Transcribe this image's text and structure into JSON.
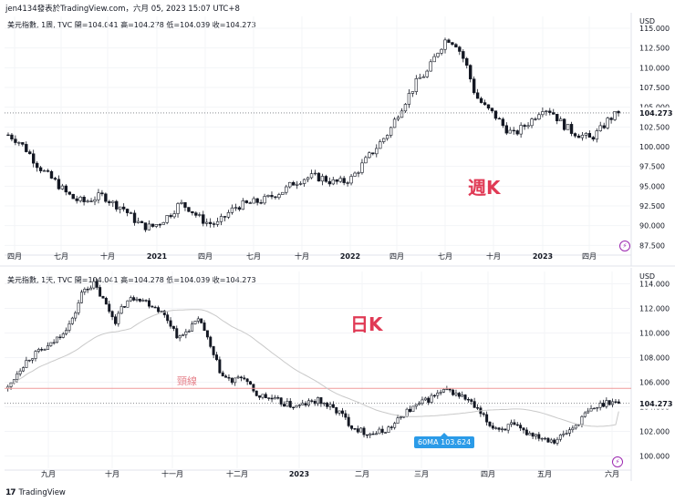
{
  "header": {
    "text": "jen4134發表於TradingView.com，六月 05, 2023 15:07 UTC+8"
  },
  "footer": {
    "logo": "17",
    "brand": "TradingView"
  },
  "weekly": {
    "title_symbol": "美元指數, 1周, TVC",
    "title_values": "開=104.041 高=104.278 低=104.039 收=104.273",
    "label": "週K",
    "last_price": "104.273",
    "currency": "USD"
  },
  "daily": {
    "title_symbol": "美元指數, 1天, TVC",
    "title_values": "開=104.041 高=104.278 低=104.039 收=104.273",
    "label": "日K",
    "neckline_label": "頸線",
    "ma_label": "60MA 103.624",
    "last_price": "104.273",
    "currency": "USD"
  },
  "chart_data": [
    {
      "type": "candlestick",
      "title": "美元指數, 1周, TVC",
      "ylim": [
        86.5,
        116.5
      ],
      "y_ticks": [
        "87.500",
        "90.000",
        "92.500",
        "95.000",
        "97.500",
        "100.000",
        "102.500",
        "105.000",
        "107.500",
        "110.000",
        "112.500",
        "115.000"
      ],
      "x_tick_labels": [
        "四月",
        "七月",
        "十月",
        "2021",
        "四月",
        "七月",
        "十月",
        "2022",
        "四月",
        "七月",
        "十月",
        "2023",
        "四月"
      ],
      "close_path": [
        101.5,
        100.8,
        99.5,
        97.8,
        96.5,
        95.5,
        94.2,
        93.3,
        93.0,
        93.5,
        93.8,
        92.8,
        92.3,
        91.0,
        90.0,
        89.8,
        90.5,
        91.5,
        92.8,
        92.2,
        91.0,
        90.3,
        90.2,
        91.5,
        92.5,
        92.7,
        93.0,
        93.3,
        94.0,
        94.5,
        95.5,
        96.0,
        96.2,
        96.0,
        95.5,
        95.5,
        96.0,
        97.5,
        99.0,
        100.5,
        102.0,
        104.5,
        106.5,
        108.5,
        109.5,
        112.0,
        113.8,
        113.0,
        110.5,
        106.5,
        105.0,
        104.0,
        102.5,
        101.5,
        102.5,
        103.5,
        105.0,
        104.5,
        103.0,
        102.0,
        101.5,
        101.0,
        102.0,
        103.5,
        104.273
      ],
      "last": 104.273
    },
    {
      "type": "candlestick",
      "title": "美元指數, 1天, TVC",
      "ylim": [
        99.0,
        115.0
      ],
      "y_ticks": [
        "100.000",
        "102.000",
        "104.000",
        "106.000",
        "108.000",
        "110.000",
        "112.000",
        "114.000"
      ],
      "x_tick_labels": [
        "九月",
        "十月",
        "十一月",
        "十二月",
        "2023",
        "二月",
        "三月",
        "四月",
        "五月",
        "六月"
      ],
      "close_path": [
        105.5,
        107.0,
        108.0,
        108.5,
        109.0,
        110.0,
        111.0,
        113.5,
        114.0,
        112.5,
        111.0,
        112.5,
        113.0,
        112.5,
        112.0,
        111.0,
        109.5,
        110.5,
        111.0,
        108.5,
        106.5,
        106.0,
        106.5,
        105.0,
        104.8,
        104.5,
        104.2,
        104.0,
        104.3,
        104.5,
        104.0,
        103.5,
        102.5,
        102.0,
        101.8,
        102.0,
        102.5,
        103.5,
        104.0,
        104.5,
        105.0,
        105.3,
        105.0,
        104.5,
        103.5,
        102.5,
        102.2,
        102.5,
        102.0,
        101.8,
        101.5,
        101.3,
        101.8,
        102.5,
        103.5,
        104.0,
        104.5,
        104.273
      ],
      "moving_average": {
        "name": "60MA",
        "value": 103.624
      },
      "neckline": 105.5,
      "last": 104.273
    }
  ],
  "colors": {
    "up": "#26a69a",
    "down": "#131722",
    "neckline": "#ef9a9a",
    "ma": "#c9c9c9",
    "tag": "#2b9be8",
    "accent": "#e03a55"
  }
}
